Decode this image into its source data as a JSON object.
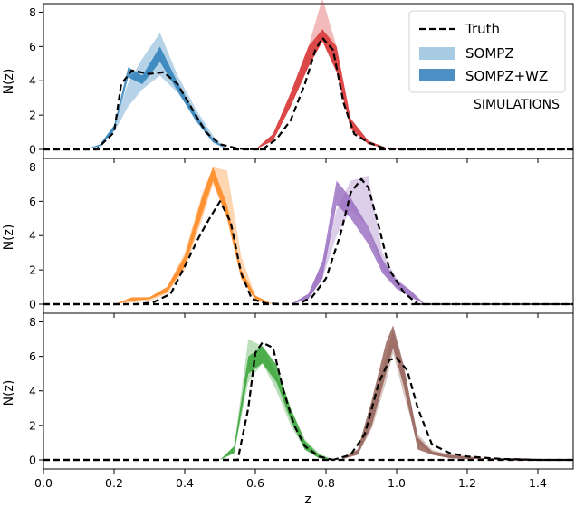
{
  "chart_data": {
    "type": "area",
    "xlabel": "z",
    "ylabel": "N(z)",
    "xlim": [
      0.0,
      1.5
    ],
    "ylim": [
      0,
      8.5
    ],
    "xticks": [
      0.0,
      0.2,
      0.4,
      0.6,
      0.8,
      1.0,
      1.2,
      1.4
    ],
    "xtick_labels": [
      "0.0",
      "0.2",
      "0.4",
      "0.6",
      "0.8",
      "1.0",
      "1.2",
      "1.4"
    ],
    "yticks": [
      0,
      2,
      4,
      6,
      8
    ],
    "ytick_labels": [
      "0",
      "2",
      "4",
      "6",
      "8"
    ],
    "grid": false,
    "legend": {
      "placement": "top-right",
      "entries": [
        "Truth",
        "SOMPZ",
        "SOMPZ+WZ"
      ]
    },
    "annotation": "SIMULATIONS",
    "colors": {
      "truth": "#000000",
      "blue": "#1f77b4",
      "red": "#d62728",
      "orange": "#ff7f0e",
      "purple": "#9467bd",
      "green": "#2ca02c",
      "brown": "#8c564b",
      "legend_sompz": "#a6cbe3",
      "legend_sompzwz": "#4b8fc5"
    },
    "panels": [
      {
        "bins": [
          {
            "color": "#1f77b4",
            "z": [
              0.12,
              0.16,
              0.2,
              0.24,
              0.28,
              0.33,
              0.38,
              0.43,
              0.48,
              0.52
            ],
            "sompz_low": [
              0,
              0.2,
              1.0,
              2.5,
              3.5,
              4.3,
              3.3,
              1.8,
              0.5,
              0
            ],
            "sompz_high": [
              0,
              0.3,
              1.4,
              3.9,
              5.3,
              6.8,
              4.3,
              2.4,
              0.8,
              0
            ],
            "wz_low": [
              0,
              0.2,
              1.1,
              4.2,
              3.8,
              5.1,
              3.4,
              1.7,
              0.4,
              0
            ],
            "wz_high": [
              0,
              0.3,
              1.4,
              4.8,
              4.3,
              6.0,
              3.9,
              2.1,
              0.6,
              0
            ],
            "truth_z": [
              0.0,
              0.15,
              0.2,
              0.22,
              0.25,
              0.3,
              0.34,
              0.38,
              0.42,
              0.46,
              0.5,
              0.55,
              0.6,
              1.5
            ],
            "truth": [
              0,
              0,
              1.0,
              3.8,
              4.6,
              4.4,
              4.5,
              3.8,
              2.4,
              1.0,
              0.3,
              0.05,
              0,
              0
            ]
          },
          {
            "color": "#d62728",
            "z": [
              0.6,
              0.65,
              0.7,
              0.75,
              0.79,
              0.83,
              0.87,
              0.92,
              0.97,
              1.02
            ],
            "sompz_low": [
              0,
              0.5,
              2.5,
              4.8,
              6.3,
              4.5,
              1.2,
              0.3,
              0.05,
              0
            ],
            "sompz_high": [
              0,
              0.9,
              3.3,
              6.0,
              8.8,
              6.0,
              1.8,
              0.5,
              0.1,
              0
            ],
            "wz_low": [
              0,
              0.5,
              2.5,
              4.8,
              6.3,
              4.5,
              1.2,
              0.3,
              0.05,
              0
            ],
            "wz_high": [
              0,
              0.9,
              3.3,
              6.0,
              7.0,
              6.0,
              1.8,
              0.5,
              0.1,
              0
            ],
            "truth_z": [
              0.0,
              0.62,
              0.66,
              0.7,
              0.74,
              0.77,
              0.79,
              0.82,
              0.85,
              0.88,
              0.92,
              0.96,
              1.0,
              1.5
            ],
            "truth": [
              0,
              0,
              0.6,
              1.7,
              3.8,
              5.8,
              6.5,
              5.8,
              2.7,
              0.9,
              0.4,
              0.1,
              0,
              0
            ]
          }
        ]
      },
      {
        "bins": [
          {
            "color": "#ff7f0e",
            "z": [
              0.2,
              0.25,
              0.3,
              0.35,
              0.4,
              0.45,
              0.48,
              0.52,
              0.56,
              0.6,
              0.65
            ],
            "sompz_low": [
              0,
              0.1,
              0.2,
              0.6,
              2.0,
              5.0,
              7.0,
              5.0,
              1.5,
              0.2,
              0
            ],
            "sompz_high": [
              0,
              0.3,
              0.4,
              1.0,
              3.0,
              6.5,
              8.0,
              7.8,
              2.8,
              0.5,
              0
            ],
            "wz_low": [
              0,
              0.2,
              0.3,
              0.7,
              2.2,
              5.3,
              7.2,
              5.0,
              1.5,
              0.3,
              0
            ],
            "wz_high": [
              0,
              0.4,
              0.4,
              1.0,
              2.8,
              6.3,
              8.0,
              5.8,
              2.0,
              0.5,
              0
            ],
            "truth_z": [
              0.0,
              0.26,
              0.31,
              0.36,
              0.4,
              0.44,
              0.47,
              0.5,
              0.53,
              0.56,
              0.59,
              0.63,
              0.68,
              1.5
            ],
            "truth": [
              0,
              0,
              0.1,
              0.6,
              2.2,
              3.9,
              5.0,
              6.0,
              4.8,
              1.8,
              0.3,
              0.05,
              0,
              0
            ]
          },
          {
            "color": "#9467bd",
            "z": [
              0.7,
              0.75,
              0.79,
              0.83,
              0.87,
              0.92,
              0.96,
              1.0,
              1.04,
              1.08
            ],
            "sompz_low": [
              0,
              0.3,
              1.5,
              4.0,
              5.5,
              4.5,
              2.0,
              1.0,
              0.4,
              0
            ],
            "sompz_high": [
              0,
              0.6,
              2.5,
              5.5,
              7.2,
              7.5,
              3.0,
              1.5,
              0.8,
              0
            ],
            "wz_low": [
              0,
              0.3,
              1.5,
              5.8,
              5.0,
              3.5,
              1.8,
              0.9,
              0.4,
              0
            ],
            "wz_high": [
              0,
              0.6,
              2.5,
              7.2,
              6.2,
              4.5,
              2.6,
              1.4,
              0.8,
              0
            ],
            "truth_z": [
              0.0,
              0.72,
              0.76,
              0.8,
              0.84,
              0.87,
              0.9,
              0.92,
              0.95,
              0.98,
              1.02,
              1.06,
              1.5
            ],
            "truth": [
              0,
              0,
              0.4,
              1.5,
              4.0,
              6.5,
              7.3,
              6.8,
              4.5,
              2.0,
              0.7,
              0,
              0
            ]
          }
        ]
      },
      {
        "bins": [
          {
            "color": "#2ca02c",
            "z": [
              0.5,
              0.54,
              0.58,
              0.62,
              0.66,
              0.7,
              0.74,
              0.78,
              0.82
            ],
            "sompz_low": [
              0,
              0.4,
              4.5,
              5.6,
              4.0,
              2.0,
              0.6,
              0.1,
              0
            ],
            "sompz_high": [
              0,
              0.8,
              7.0,
              6.6,
              5.0,
              3.0,
              1.2,
              0.4,
              0
            ],
            "wz_low": [
              0,
              0.4,
              5.0,
              5.6,
              4.5,
              2.3,
              0.6,
              0.1,
              0
            ],
            "wz_high": [
              0,
              0.8,
              6.0,
              6.6,
              5.5,
              3.0,
              1.1,
              0.3,
              0
            ],
            "truth_z": [
              0.0,
              0.55,
              0.58,
              0.6,
              0.62,
              0.65,
              0.68,
              0.71,
              0.74,
              0.78,
              0.82,
              1.5
            ],
            "truth": [
              0,
              0,
              3.0,
              6.2,
              6.8,
              6.5,
              4.0,
              2.0,
              0.8,
              0.2,
              0,
              0
            ]
          },
          {
            "color": "#8c564b",
            "z": [
              0.84,
              0.89,
              0.93,
              0.97,
              0.99,
              1.02,
              1.06,
              1.1,
              1.15,
              1.2,
              1.25,
              1.3,
              1.35,
              1.4,
              1.45
            ],
            "sompz_low": [
              0,
              0.3,
              1.8,
              4.5,
              6.2,
              3.8,
              1.0,
              0.3,
              0.1,
              0.05,
              0.05,
              0.02,
              0.02,
              0.02,
              0
            ],
            "sompz_high": [
              0,
              0.6,
              3.2,
              6.0,
              7.5,
              5.2,
              1.5,
              0.6,
              0.3,
              0.2,
              0.1,
              0.1,
              0.1,
              0.05,
              0
            ],
            "wz_low": [
              0,
              0.3,
              2.0,
              5.0,
              6.5,
              4.3,
              0.6,
              0.3,
              0.1,
              0.05,
              0.05,
              0.02,
              0.02,
              0.02,
              0
            ],
            "wz_high": [
              0,
              0.6,
              3.5,
              6.8,
              7.8,
              5.5,
              1.3,
              0.5,
              0.3,
              0.2,
              0.1,
              0.1,
              0.1,
              0.05,
              0
            ],
            "truth_z": [
              0.0,
              0.82,
              0.87,
              0.91,
              0.95,
              0.98,
              1.0,
              1.03,
              1.06,
              1.1,
              1.15,
              1.2,
              1.3,
              1.4,
              1.5
            ],
            "truth": [
              0,
              0,
              0.3,
              1.5,
              4.5,
              5.8,
              5.9,
              5.2,
              3.0,
              0.9,
              0.4,
              0.2,
              0.05,
              0,
              0
            ]
          }
        ]
      }
    ]
  }
}
